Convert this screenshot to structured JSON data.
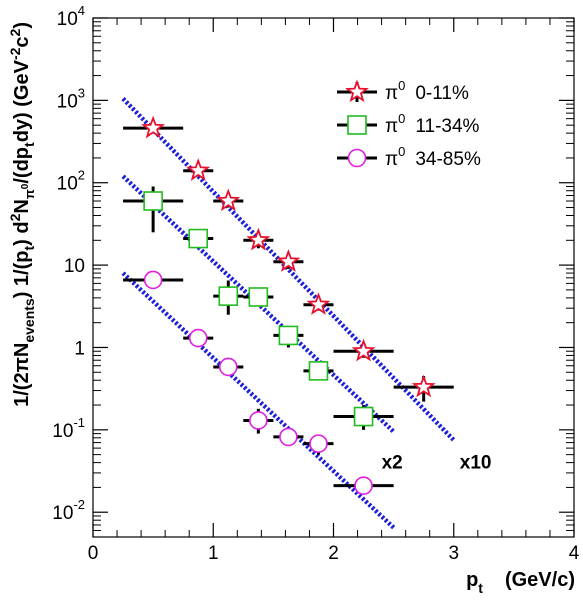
{
  "chart_data": {
    "type": "scatter",
    "title": "",
    "xlabel": {
      "main": "p",
      "sub": "t",
      "unit": "(GeV/c)"
    },
    "ylabel": {
      "part1": "1/(2",
      "pi": "π",
      "part2": "N",
      "part2_sub": "events",
      "part3": ")   1/(p",
      "part3_sub": "t",
      "part4": ")   d",
      "part4_sup": "2",
      "part5": "N",
      "part5_sub": "π",
      "part5_subsup": "0",
      "part6": "/(dp",
      "part6_sub": "t",
      "part7": "dy)   (GeV",
      "part7_sup": "-2",
      "part8": "c",
      "part8_sup": "2",
      "part9": ")"
    },
    "x_axis": {
      "range": [
        0,
        4
      ],
      "ticks": [
        {
          "value": 0,
          "label": "0"
        },
        {
          "value": 1,
          "label": "1"
        },
        {
          "value": 2,
          "label": "2"
        },
        {
          "value": 3,
          "label": "3"
        },
        {
          "value": 4,
          "label": "4"
        }
      ]
    },
    "y_axis": {
      "scale": "log",
      "range": [
        0.005,
        10000
      ],
      "ticks": [
        {
          "value": 0.01,
          "base": "10",
          "exp": "-2"
        },
        {
          "value": 0.1,
          "base": "10",
          "exp": "-1"
        },
        {
          "value": 1,
          "base": "1",
          "exp": ""
        },
        {
          "value": 10,
          "base": "10",
          "exp": ""
        },
        {
          "value": 100,
          "base": "10",
          "exp": "2"
        },
        {
          "value": 1000,
          "base": "10",
          "exp": "3"
        },
        {
          "value": 10000,
          "base": "10",
          "exp": "4"
        }
      ]
    },
    "grid": false,
    "legend": {
      "placement": "top-right"
    },
    "series": [
      {
        "name": "0-11%",
        "name_prefix": "π",
        "name_sup": "0",
        "marker": "star",
        "color": "#e8112d",
        "points": [
          {
            "x": 0.5,
            "y": 460,
            "xerr": 0.25,
            "ylo": 460,
            "yhi": 460
          },
          {
            "x": 0.875,
            "y": 140,
            "xerr": 0.125,
            "ylo": 120,
            "yhi": 160
          },
          {
            "x": 1.125,
            "y": 60,
            "xerr": 0.125,
            "ylo": 50,
            "yhi": 72
          },
          {
            "x": 1.375,
            "y": 20,
            "xerr": 0.125,
            "ylo": 16,
            "yhi": 24
          },
          {
            "x": 1.625,
            "y": 11,
            "xerr": 0.125,
            "ylo": 9,
            "yhi": 13
          },
          {
            "x": 1.875,
            "y": 3.3,
            "xerr": 0.125,
            "ylo": 2.8,
            "yhi": 3.8
          },
          {
            "x": 2.25,
            "y": 0.9,
            "xerr": 0.25,
            "ylo": 0.75,
            "yhi": 1.1
          },
          {
            "x": 2.75,
            "y": 0.33,
            "xerr": 0.25,
            "ylo": 0.22,
            "yhi": 0.45
          }
        ]
      },
      {
        "name": "11-34%",
        "name_prefix": "π",
        "name_sup": "0",
        "marker": "square",
        "color": "#22bb22",
        "points": [
          {
            "x": 0.5,
            "y": 60,
            "xerr": 0.25,
            "ylo": 25,
            "yhi": 90
          },
          {
            "x": 0.875,
            "y": 21,
            "xerr": 0.125,
            "ylo": 19,
            "yhi": 23
          },
          {
            "x": 1.125,
            "y": 4.2,
            "xerr": 0.125,
            "ylo": 2.5,
            "yhi": 6.5
          },
          {
            "x": 1.375,
            "y": 4.1,
            "xerr": 0.125,
            "ylo": 3.5,
            "yhi": 4.7
          },
          {
            "x": 1.625,
            "y": 1.4,
            "xerr": 0.125,
            "ylo": 1.0,
            "yhi": 1.8
          },
          {
            "x": 1.875,
            "y": 0.52,
            "xerr": 0.125,
            "ylo": 0.4,
            "yhi": 0.65
          },
          {
            "x": 2.25,
            "y": 0.145,
            "xerr": 0.25,
            "ylo": 0.1,
            "yhi": 0.2
          }
        ]
      },
      {
        "name": "34-85%",
        "name_prefix": "π",
        "name_sup": "0",
        "marker": "circle",
        "color": "#e020e0",
        "points": [
          {
            "x": 0.5,
            "y": 6.6,
            "xerr": 0.25,
            "ylo": 6.6,
            "yhi": 6.6
          },
          {
            "x": 0.875,
            "y": 1.3,
            "xerr": 0.125,
            "ylo": 1.15,
            "yhi": 1.45
          },
          {
            "x": 1.125,
            "y": 0.58,
            "xerr": 0.125,
            "ylo": 0.5,
            "yhi": 0.66
          },
          {
            "x": 1.375,
            "y": 0.13,
            "xerr": 0.125,
            "ylo": 0.09,
            "yhi": 0.18
          },
          {
            "x": 1.625,
            "y": 0.082,
            "xerr": 0.125,
            "ylo": 0.065,
            "yhi": 0.1
          },
          {
            "x": 1.875,
            "y": 0.068,
            "xerr": 0.125,
            "ylo": 0.05,
            "yhi": 0.085
          },
          {
            "x": 2.25,
            "y": 0.021,
            "xerr": 0.25,
            "ylo": 0.021,
            "yhi": 0.021
          }
        ]
      }
    ],
    "fit_lines": [
      {
        "from": [
          0.25,
          1050
        ],
        "to": [
          3.0,
          0.075
        ],
        "color": "#1e20d8"
      },
      {
        "from": [
          0.25,
          120
        ],
        "to": [
          2.5,
          0.095
        ],
        "color": "#1e20d8"
      },
      {
        "from": [
          0.25,
          8
        ],
        "to": [
          2.5,
          0.0065
        ],
        "color": "#1e20d8"
      }
    ],
    "annotations": [
      {
        "text": "x2",
        "x": 2.4,
        "y": 0.034
      },
      {
        "text": "x10",
        "x": 3.05,
        "y": 0.034
      }
    ]
  }
}
